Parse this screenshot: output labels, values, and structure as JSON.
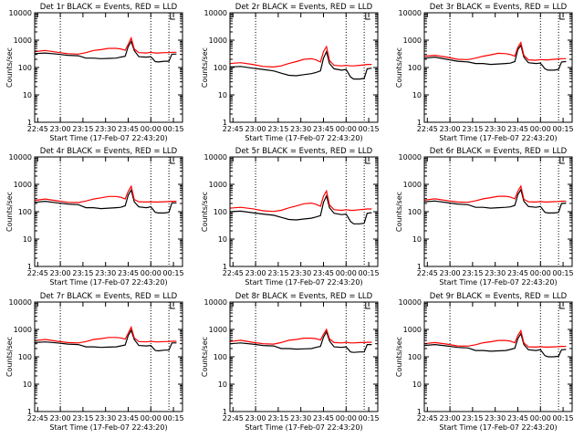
{
  "colors": {
    "events": "#000000",
    "lld": "#ff0000",
    "axis": "#000000",
    "background": "#ffffff"
  },
  "xlabel": "Start Time (17-Feb-07 22:43:20)",
  "ylabel": "Counts/sec",
  "x_tick_labels": [
    "22:45",
    "23:00",
    "23:15",
    "23:30",
    "23:45",
    "00:00",
    "00:15"
  ],
  "y_tick_labels": [
    "1",
    "10",
    "100",
    "1000",
    "10000"
  ],
  "chart_data": [
    {
      "type": "line",
      "title": "Det 1r BLACK = Events, RED = LLD",
      "yscale": "log",
      "ylim": [
        1,
        10000
      ],
      "grid": false,
      "x": [
        "22:43",
        "22:50",
        "22:58",
        "23:05",
        "23:12",
        "23:17",
        "23:22",
        "23:27",
        "23:32",
        "23:37",
        "23:40",
        "23:43",
        "23:45",
        "23:47",
        "23:49",
        "23:52",
        "23:57",
        "00:00",
        "00:03",
        "00:05",
        "00:09",
        "00:12",
        "00:14",
        "00:17"
      ],
      "series": [
        {
          "name": "Events",
          "values": [
            320,
            340,
            310,
            280,
            270,
            220,
            220,
            210,
            215,
            220,
            240,
            260,
            580,
            900,
            420,
            250,
            240,
            250,
            165,
            160,
            170,
            170,
            310,
            310
          ]
        },
        {
          "name": "LLD",
          "values": [
            380,
            420,
            360,
            320,
            310,
            350,
            420,
            450,
            500,
            500,
            480,
            430,
            700,
            1200,
            480,
            350,
            340,
            360,
            340,
            340,
            350,
            350,
            360,
            360
          ]
        }
      ]
    },
    {
      "type": "line",
      "title": "Det 2r BLACK = Events, RED = LLD",
      "yscale": "log",
      "ylim": [
        1,
        10000
      ],
      "grid": false,
      "x": [
        "22:43",
        "22:50",
        "22:58",
        "23:05",
        "23:12",
        "23:17",
        "23:22",
        "23:27",
        "23:32",
        "23:37",
        "23:40",
        "23:43",
        "23:45",
        "23:47",
        "23:49",
        "23:52",
        "23:57",
        "00:00",
        "00:03",
        "00:05",
        "00:09",
        "00:12",
        "00:14",
        "00:17"
      ],
      "series": [
        {
          "name": "Events",
          "values": [
            105,
            110,
            95,
            85,
            75,
            62,
            52,
            50,
            55,
            60,
            66,
            75,
            220,
            380,
            140,
            90,
            80,
            85,
            45,
            38,
            38,
            40,
            90,
            95
          ]
        },
        {
          "name": "LLD",
          "values": [
            140,
            150,
            130,
            110,
            105,
            115,
            140,
            165,
            200,
            210,
            190,
            160,
            380,
            580,
            180,
            120,
            115,
            120,
            115,
            115,
            120,
            125,
            130,
            130
          ]
        }
      ]
    },
    {
      "type": "line",
      "title": "Det 3r BLACK = Events, RED = LLD",
      "yscale": "log",
      "ylim": [
        1,
        10000
      ],
      "grid": false,
      "x": [
        "22:43",
        "22:50",
        "22:58",
        "23:05",
        "23:12",
        "23:17",
        "23:22",
        "23:27",
        "23:32",
        "23:37",
        "23:40",
        "23:43",
        "23:45",
        "23:47",
        "23:49",
        "23:52",
        "23:57",
        "00:00",
        "00:03",
        "00:05",
        "00:09",
        "00:12",
        "00:14",
        "00:17"
      ],
      "series": [
        {
          "name": "Events",
          "values": [
            220,
            240,
            200,
            170,
            160,
            140,
            140,
            130,
            135,
            140,
            145,
            165,
            450,
            650,
            240,
            150,
            140,
            145,
            90,
            80,
            80,
            85,
            160,
            165
          ]
        },
        {
          "name": "LLD",
          "values": [
            260,
            280,
            240,
            200,
            195,
            220,
            260,
            290,
            330,
            320,
            300,
            260,
            550,
            820,
            280,
            190,
            185,
            195,
            190,
            190,
            200,
            205,
            210,
            210
          ]
        }
      ]
    },
    {
      "type": "line",
      "title": "Det 4r BLACK = Events, RED = LLD",
      "yscale": "log",
      "ylim": [
        1,
        10000
      ],
      "grid": false,
      "x": [
        "22:43",
        "22:50",
        "22:58",
        "23:05",
        "23:12",
        "23:17",
        "23:22",
        "23:27",
        "23:32",
        "23:37",
        "23:40",
        "23:43",
        "23:45",
        "23:47",
        "23:49",
        "23:52",
        "23:57",
        "00:00",
        "00:03",
        "00:05",
        "00:09",
        "00:12",
        "00:14",
        "00:17"
      ],
      "series": [
        {
          "name": "Events",
          "values": [
            220,
            240,
            210,
            190,
            180,
            140,
            140,
            130,
            135,
            140,
            145,
            165,
            400,
            620,
            230,
            150,
            140,
            150,
            95,
            90,
            90,
            95,
            210,
            210
          ]
        },
        {
          "name": "LLD",
          "values": [
            260,
            290,
            250,
            220,
            215,
            245,
            290,
            320,
            360,
            360,
            340,
            290,
            550,
            850,
            280,
            230,
            225,
            230,
            225,
            225,
            230,
            235,
            240,
            240
          ]
        }
      ]
    },
    {
      "type": "line",
      "title": "Det 5r BLACK = Events, RED = LLD",
      "yscale": "log",
      "ylim": [
        1,
        10000
      ],
      "grid": false,
      "x": [
        "22:43",
        "22:50",
        "22:58",
        "23:05",
        "23:12",
        "23:17",
        "23:22",
        "23:27",
        "23:32",
        "23:37",
        "23:40",
        "23:43",
        "23:45",
        "23:47",
        "23:49",
        "23:52",
        "23:57",
        "00:00",
        "00:03",
        "00:05",
        "00:09",
        "00:12",
        "00:14",
        "00:17"
      ],
      "series": [
        {
          "name": "Events",
          "values": [
            100,
            105,
            92,
            82,
            74,
            62,
            52,
            50,
            54,
            58,
            64,
            72,
            220,
            380,
            140,
            88,
            78,
            82,
            44,
            36,
            36,
            38,
            88,
            92
          ]
        },
        {
          "name": "LLD",
          "values": [
            135,
            145,
            128,
            108,
            102,
            112,
            138,
            162,
            195,
            205,
            188,
            158,
            370,
            570,
            175,
            118,
            112,
            118,
            112,
            112,
            118,
            122,
            126,
            126
          ]
        }
      ]
    },
    {
      "type": "line",
      "title": "Det 6r BLACK = Events, RED = LLD",
      "yscale": "log",
      "ylim": [
        1,
        10000
      ],
      "grid": false,
      "x": [
        "22:43",
        "22:50",
        "22:58",
        "23:05",
        "23:12",
        "23:17",
        "23:22",
        "23:27",
        "23:32",
        "23:37",
        "23:40",
        "23:43",
        "23:45",
        "23:47",
        "23:49",
        "23:52",
        "23:57",
        "00:00",
        "00:03",
        "00:05",
        "00:09",
        "00:12",
        "00:14",
        "00:17"
      ],
      "series": [
        {
          "name": "Events",
          "values": [
            230,
            245,
            215,
            190,
            180,
            145,
            145,
            135,
            140,
            145,
            150,
            170,
            420,
            640,
            240,
            155,
            145,
            155,
            95,
            90,
            90,
            95,
            200,
            205
          ]
        },
        {
          "name": "LLD",
          "values": [
            265,
            295,
            255,
            225,
            220,
            250,
            295,
            325,
            365,
            365,
            345,
            295,
            560,
            860,
            285,
            230,
            225,
            235,
            225,
            225,
            232,
            236,
            242,
            242
          ]
        }
      ]
    },
    {
      "type": "line",
      "title": "Det 7r BLACK = Events, RED = LLD",
      "yscale": "log",
      "ylim": [
        1,
        10000
      ],
      "grid": false,
      "x": [
        "22:43",
        "22:50",
        "22:58",
        "23:05",
        "23:12",
        "23:17",
        "23:22",
        "23:27",
        "23:32",
        "23:37",
        "23:40",
        "23:43",
        "23:45",
        "23:47",
        "23:49",
        "23:52",
        "23:57",
        "00:00",
        "00:03",
        "00:05",
        "00:09",
        "00:12",
        "00:14",
        "00:17"
      ],
      "series": [
        {
          "name": "Events",
          "values": [
            330,
            350,
            320,
            290,
            280,
            230,
            230,
            220,
            225,
            230,
            250,
            270,
            600,
            920,
            430,
            260,
            250,
            260,
            170,
            165,
            175,
            175,
            320,
            320
          ]
        },
        {
          "name": "LLD",
          "values": [
            390,
            430,
            370,
            330,
            320,
            360,
            430,
            460,
            510,
            510,
            490,
            440,
            720,
            1200,
            490,
            360,
            350,
            370,
            350,
            350,
            360,
            360,
            370,
            370
          ]
        }
      ]
    },
    {
      "type": "line",
      "title": "Det 8r BLACK = Events, RED = LLD",
      "yscale": "log",
      "ylim": [
        1,
        10000
      ],
      "grid": false,
      "x": [
        "22:43",
        "22:50",
        "22:58",
        "23:05",
        "23:12",
        "23:17",
        "23:22",
        "23:27",
        "23:32",
        "23:37",
        "23:40",
        "23:43",
        "23:45",
        "23:47",
        "23:49",
        "23:52",
        "23:57",
        "00:00",
        "00:03",
        "00:05",
        "00:09",
        "00:12",
        "00:14",
        "00:17"
      ],
      "series": [
        {
          "name": "Events",
          "values": [
            300,
            320,
            290,
            260,
            250,
            200,
            200,
            190,
            195,
            200,
            220,
            240,
            520,
            820,
            380,
            230,
            220,
            230,
            150,
            145,
            150,
            150,
            280,
            280
          ]
        },
        {
          "name": "LLD",
          "values": [
            360,
            400,
            340,
            300,
            290,
            330,
            400,
            430,
            480,
            480,
            460,
            410,
            660,
            1000,
            450,
            330,
            320,
            340,
            320,
            320,
            330,
            330,
            340,
            340
          ]
        }
      ]
    },
    {
      "type": "line",
      "title": "Det 9r BLACK = Events, RED = LLD",
      "yscale": "log",
      "ylim": [
        1,
        10000
      ],
      "grid": false,
      "x": [
        "22:43",
        "22:50",
        "22:58",
        "23:05",
        "23:12",
        "23:17",
        "23:22",
        "23:27",
        "23:32",
        "23:37",
        "23:40",
        "23:43",
        "23:45",
        "23:47",
        "23:49",
        "23:52",
        "23:57",
        "00:00",
        "00:03",
        "00:05",
        "00:09",
        "00:12",
        "00:14",
        "00:17"
      ],
      "series": [
        {
          "name": "Events",
          "values": [
            260,
            280,
            250,
            220,
            210,
            170,
            170,
            160,
            165,
            170,
            185,
            205,
            460,
            700,
            280,
            180,
            170,
            180,
            110,
            100,
            100,
            105,
            180,
            185
          ]
        },
        {
          "name": "LLD",
          "values": [
            300,
            330,
            290,
            250,
            245,
            275,
            325,
            355,
            395,
            395,
            375,
            325,
            600,
            900,
            320,
            230,
            225,
            235,
            225,
            225,
            230,
            235,
            240,
            240
          ]
        }
      ]
    }
  ]
}
